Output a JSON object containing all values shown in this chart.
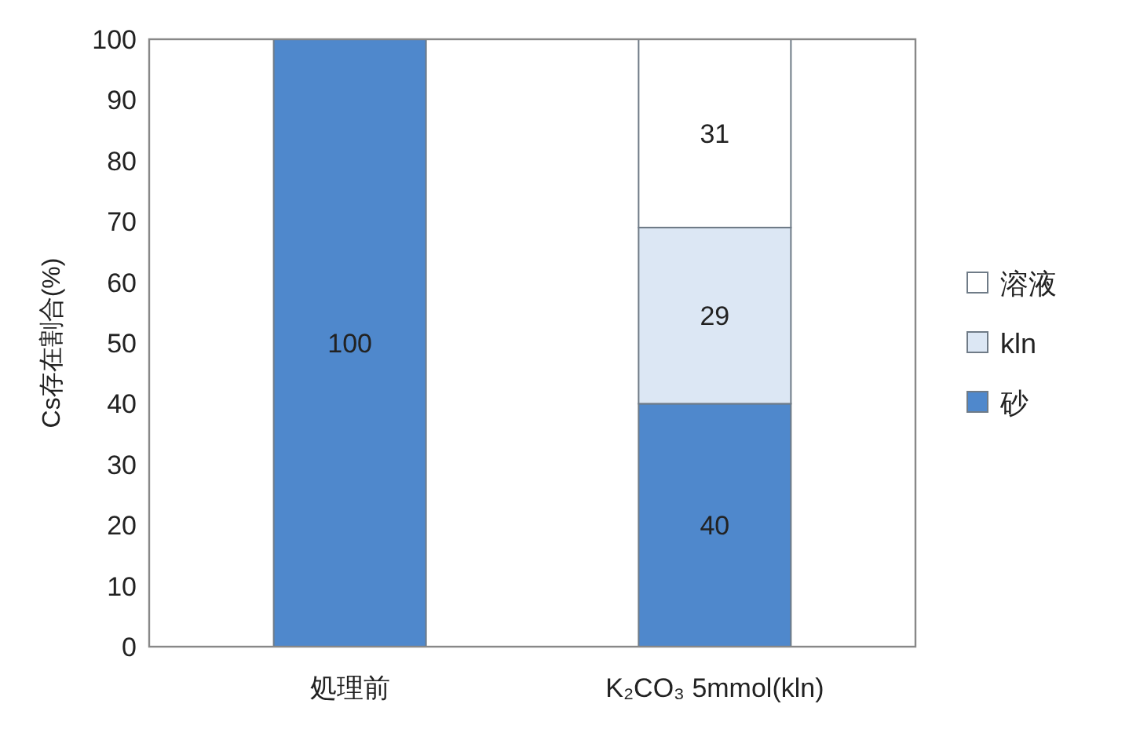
{
  "chart_data": {
    "type": "bar",
    "stacked": true,
    "categories": [
      "処理前",
      "K₂CO₃ 5mmol(kln)"
    ],
    "series": [
      {
        "name": "砂",
        "color": "#4f88cc",
        "values": [
          100,
          40
        ],
        "value_labels": [
          "100",
          "40"
        ]
      },
      {
        "name": "kln",
        "color": "#dce7f4",
        "values": [
          0,
          29
        ],
        "value_labels": [
          null,
          "29"
        ]
      },
      {
        "name": "溶液",
        "color": "#ffffff",
        "values": [
          0,
          31
        ],
        "value_labels": [
          null,
          "31"
        ]
      }
    ],
    "ylabel": "Cs存在割合(%)",
    "ylim": [
      0,
      100
    ],
    "yticks": [
      0,
      10,
      20,
      30,
      40,
      50,
      60,
      70,
      80,
      90,
      100
    ],
    "grid": false,
    "legend": "right"
  }
}
